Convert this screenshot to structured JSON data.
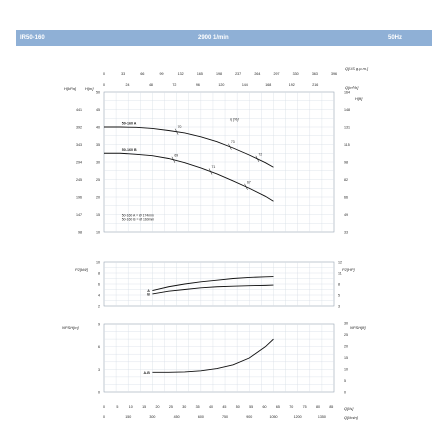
{
  "header": {
    "model": "IR50-160",
    "speed": "2900 1/min",
    "freq": "50Hz"
  },
  "chart_data": [
    {
      "type": "line",
      "panel": "head",
      "x_ticks_lmin": [
        0,
        150,
        300,
        450,
        600,
        750,
        900,
        1050,
        1200,
        1350
      ],
      "x_labels_lmin": [
        "0",
        "150",
        "300",
        "450",
        "600",
        "750",
        "900",
        "1050",
        "1200",
        "1350"
      ],
      "x_ticks_usgpm_labels": [
        "0",
        "33",
        "66",
        "99",
        "132",
        "165",
        "198",
        "237",
        "264",
        "297",
        "330",
        "363",
        "396"
      ],
      "x_ticks_m3h_labels": [
        "0",
        "24",
        "48",
        "72",
        "96",
        "120",
        "144",
        "168",
        "192",
        "216"
      ],
      "x_ticks_ls_labels": [
        "0",
        "5",
        "10",
        "15",
        "20",
        "25",
        "30",
        "35",
        "40",
        "45",
        "50",
        "55",
        "60",
        "65",
        "70",
        "75",
        "80",
        "85"
      ],
      "axis_units": {
        "q_usgpm": "Q[US g.p.m.]",
        "q_m3h": "Q[m³/h]",
        "h_left": "H[m]",
        "h_right": "H[ft]",
        "hpa": "H[kPa]",
        "q_ls": "Q[l/s]",
        "q_lmin": "Q[l/min]"
      },
      "ylim": [
        10,
        50
      ],
      "y_ticks_m": [
        10,
        15,
        20,
        25,
        30,
        35,
        40,
        45,
        50
      ],
      "y_ticks_kpa": [
        "98",
        "147",
        "196",
        "245",
        "294",
        "343",
        "392",
        "441"
      ],
      "y_ticks_ft": [
        "33",
        "49",
        "66",
        "82",
        "98",
        "115",
        "131",
        "148",
        "164"
      ],
      "series": [
        {
          "name": "50-160 A",
          "x": [
            0,
            100,
            200,
            300,
            400,
            500,
            600,
            700,
            800,
            900,
            1000,
            1050
          ],
          "values": [
            40,
            40,
            39.9,
            39.6,
            39,
            38.3,
            37.2,
            35.8,
            34,
            32,
            29.8,
            28.5
          ]
        },
        {
          "name": "50-160 B",
          "x": [
            0,
            100,
            200,
            300,
            400,
            500,
            600,
            700,
            800,
            900,
            1000,
            1050
          ],
          "values": [
            32.5,
            32.5,
            32.2,
            31.8,
            31,
            29.8,
            28.3,
            26.6,
            24.6,
            22.5,
            20.2,
            18.8
          ]
        }
      ],
      "efficiency_label": "η [%]",
      "efficiency_marks": [
        {
          "series": "50-160 A",
          "x": 450,
          "label": "70"
        },
        {
          "series": "50-160 A",
          "x": 780,
          "label": "73"
        },
        {
          "series": "50-160 A",
          "x": 950,
          "label": "72"
        },
        {
          "series": "50-160 B",
          "x": 430,
          "label": "69"
        },
        {
          "series": "50-160 B",
          "x": 660,
          "label": "71"
        },
        {
          "series": "50-160 B",
          "x": 880,
          "label": "67"
        }
      ],
      "annotations": [
        "50-160 A = Ø 174mm",
        "50-160 B = Ø 160mm"
      ]
    },
    {
      "type": "line",
      "panel": "power",
      "ylim": [
        2,
        10
      ],
      "y_ticks_kw": [
        "2",
        "4",
        "6",
        "8",
        "10"
      ],
      "y_ticks_hp": [
        "3",
        "5",
        "8",
        "11",
        "12"
      ],
      "axis_units": {
        "left": "P2[kW]",
        "right": "P2[HP]"
      },
      "series": [
        {
          "name": "A",
          "x": [
            300,
            400,
            500,
            600,
            700,
            800,
            900,
            1000,
            1050
          ],
          "values": [
            4.8,
            5.5,
            6.0,
            6.4,
            6.7,
            7.0,
            7.2,
            7.3,
            7.35
          ]
        },
        {
          "name": "B",
          "x": [
            300,
            400,
            500,
            600,
            700,
            800,
            900,
            1000,
            1050
          ],
          "values": [
            4.2,
            4.7,
            5.0,
            5.3,
            5.5,
            5.6,
            5.7,
            5.75,
            5.8
          ]
        }
      ]
    },
    {
      "type": "line",
      "panel": "npsh",
      "ylim": [
        0,
        9
      ],
      "y_ticks_m": [
        "0",
        "3",
        "6",
        "9"
      ],
      "y_ticks_ft": [
        "0",
        "5",
        "10",
        "15",
        "20",
        "25",
        "30"
      ],
      "axis_units": {
        "left": "NPSH[m]",
        "right": "NPSH[ft]"
      },
      "series": [
        {
          "name": "A-B",
          "x": [
            300,
            400,
            500,
            600,
            700,
            800,
            900,
            1000,
            1050
          ],
          "values": [
            2.6,
            2.6,
            2.65,
            2.8,
            3.1,
            3.6,
            4.5,
            6.0,
            7.0
          ]
        }
      ]
    }
  ]
}
